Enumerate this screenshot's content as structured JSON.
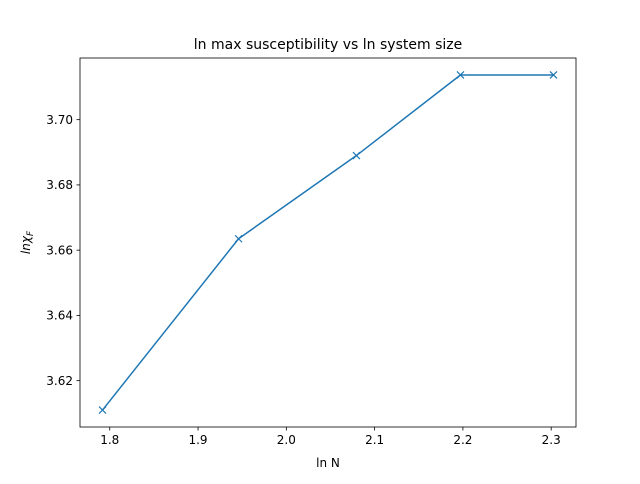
{
  "chart_data": {
    "type": "line",
    "title": "ln max susceptibility vs ln system size",
    "xlabel": "ln N",
    "ylabel_main": "lnχ",
    "ylabel_sub": "F",
    "x": [
      1.7918,
      1.9459,
      2.0794,
      2.1972,
      2.3026
    ],
    "series": [
      {
        "values": [
          3.611,
          3.6635,
          3.689,
          3.7137,
          3.7137
        ],
        "color": "#1f77b4",
        "marker": "x"
      }
    ],
    "xlim": [
      1.7663,
      2.3281
    ],
    "ylim": [
      3.6058,
      3.7189
    ],
    "xticks": [
      {
        "value": 1.8,
        "label": "1.8"
      },
      {
        "value": 1.9,
        "label": "1.9"
      },
      {
        "value": 2.0,
        "label": "2.0"
      },
      {
        "value": 2.1,
        "label": "2.1"
      },
      {
        "value": 2.2,
        "label": "2.2"
      },
      {
        "value": 2.3,
        "label": "2.3"
      }
    ],
    "yticks": [
      {
        "value": 3.62,
        "label": "3.62"
      },
      {
        "value": 3.64,
        "label": "3.64"
      },
      {
        "value": 3.66,
        "label": "3.66"
      },
      {
        "value": 3.68,
        "label": "3.68"
      },
      {
        "value": 3.7,
        "label": "3.70"
      }
    ],
    "grid": false,
    "legend": "none"
  }
}
